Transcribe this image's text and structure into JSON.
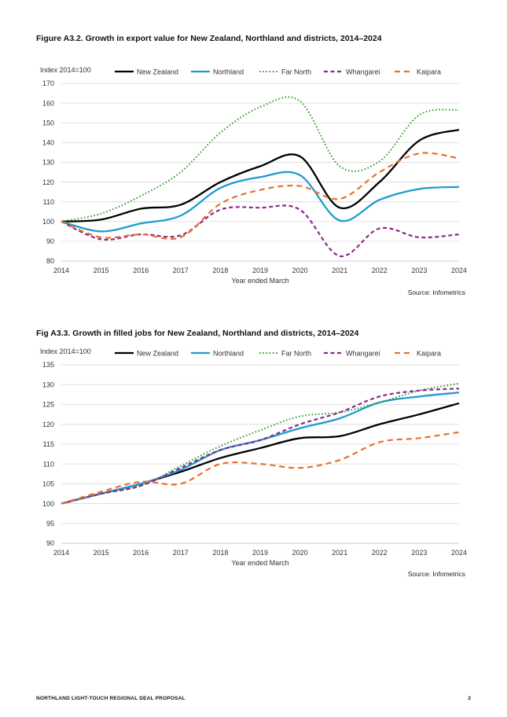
{
  "page": {
    "footer_left": "NORTHLAND LIGHT-TOUCH REGIONAL DEAL PROPOSAL",
    "page_number": "2"
  },
  "colors": {
    "New Zealand": "#000000",
    "Northland": "#1f9bd1",
    "Far North": "#3a9c2f",
    "Whangarei": "#8b2a8b",
    "Kaipara": "#e8702a",
    "grid": "#d9d9d9",
    "axis": "#bfbfbf"
  },
  "chart_data": [
    {
      "type": "line",
      "title": "Figure A3.2. Growth in export value for New Zealand, Northland and districts, 2014–2024",
      "ylabel": "Index 2014=100",
      "xlabel": "Year ended March",
      "source": "Source: Infometrics",
      "x": [
        "2014",
        "2015",
        "2016",
        "2017",
        "2018",
        "2019",
        "2020",
        "2021",
        "2022",
        "2023",
        "2024"
      ],
      "ylim": [
        80,
        170
      ],
      "yticks": [
        80,
        90,
        100,
        110,
        120,
        130,
        140,
        150,
        160,
        170
      ],
      "grid": true,
      "legend_position": "top",
      "series": [
        {
          "name": "New Zealand",
          "style": "solid",
          "values": [
            100,
            101,
            106.5,
            108.5,
            120,
            128,
            133,
            107,
            120,
            141,
            146.5
          ]
        },
        {
          "name": "Northland",
          "style": "solid",
          "values": [
            100,
            95,
            99,
            103,
            117,
            122.5,
            123.5,
            100.5,
            111,
            116.5,
            117.5
          ]
        },
        {
          "name": "Far North",
          "style": "dotted",
          "values": [
            100,
            104,
            113,
            125,
            145,
            158,
            161,
            128,
            130.5,
            154,
            156.5
          ]
        },
        {
          "name": "Whangarei",
          "style": "dashed",
          "values": [
            100,
            91,
            93.5,
            93,
            106,
            107,
            106,
            82.5,
            96.5,
            92,
            93.5
          ]
        },
        {
          "name": "Kaipara",
          "style": "longdash",
          "values": [
            100,
            92,
            93.5,
            92,
            109,
            116,
            118,
            111.5,
            125,
            134.5,
            132
          ]
        }
      ]
    },
    {
      "type": "line",
      "title": "Fig A3.3. Growth in filled jobs for New Zealand, Northland and districts, 2014–2024",
      "ylabel": "Index 2014=100",
      "xlabel": "Year ended March",
      "source": "Source: Infometrics",
      "x": [
        "2014",
        "2015",
        "2016",
        "2017",
        "2018",
        "2019",
        "2020",
        "2021",
        "2022",
        "2023",
        "2024"
      ],
      "ylim": [
        90,
        135
      ],
      "yticks": [
        90,
        95,
        100,
        105,
        110,
        115,
        120,
        125,
        130,
        135
      ],
      "grid": true,
      "legend_position": "top",
      "series": [
        {
          "name": "New Zealand",
          "style": "solid",
          "values": [
            100,
            102.5,
            105,
            108,
            111.5,
            114,
            116.5,
            117,
            120,
            122.5,
            125.3
          ]
        },
        {
          "name": "Northland",
          "style": "solid",
          "values": [
            100,
            102.5,
            105,
            108.5,
            113.5,
            116,
            119,
            121.5,
            125.5,
            127,
            128
          ]
        },
        {
          "name": "Far North",
          "style": "dotted",
          "values": [
            100,
            102.5,
            104.5,
            109.5,
            114.5,
            118.5,
            122,
            123,
            125.5,
            128.5,
            130.3
          ]
        },
        {
          "name": "Whangarei",
          "style": "dashed",
          "values": [
            100,
            102.5,
            104.5,
            109,
            113.5,
            116,
            120,
            123,
            127,
            128.5,
            129
          ]
        },
        {
          "name": "Kaipara",
          "style": "longdash",
          "values": [
            100,
            103,
            105.5,
            105,
            110,
            110,
            109,
            111,
            115.5,
            116.5,
            118
          ]
        }
      ]
    }
  ]
}
